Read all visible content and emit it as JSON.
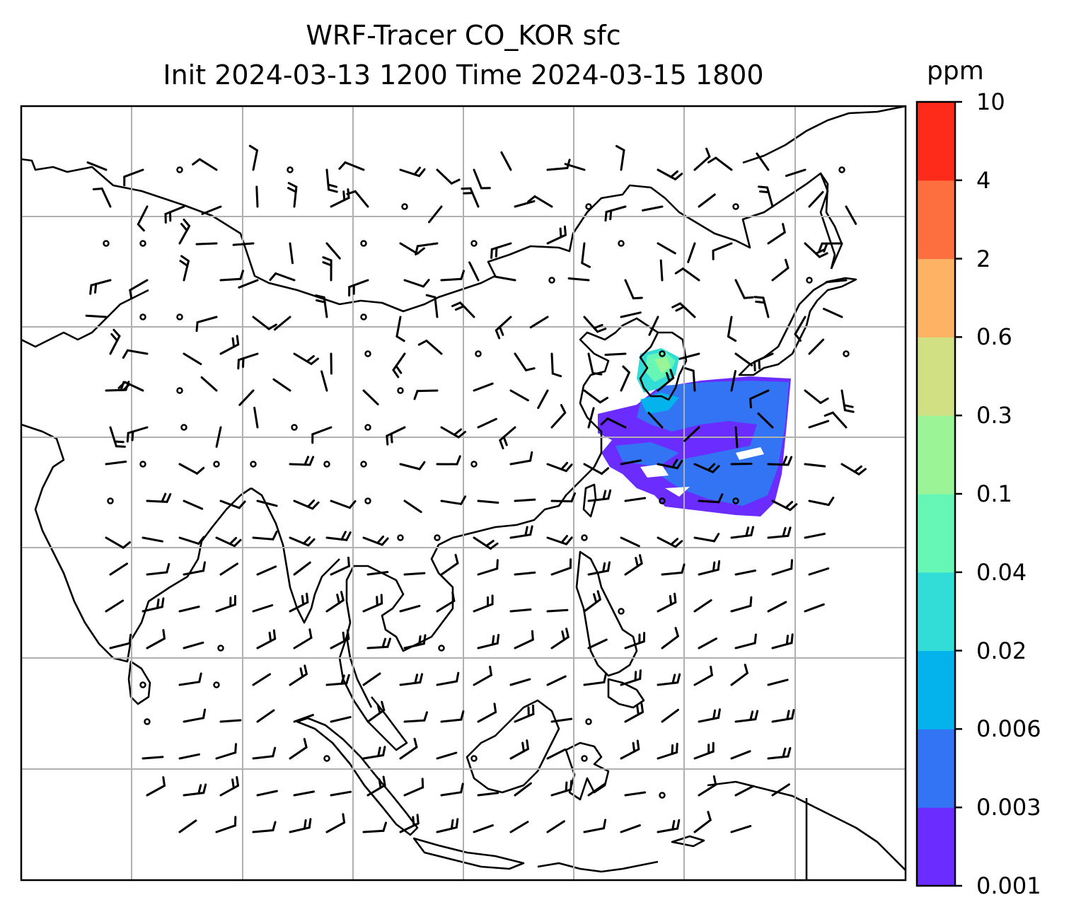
{
  "title": {
    "line1": "WRF-Tracer CO_KOR sfc",
    "line2": "Init 2024-03-13 1200 Time 2024-03-15 1800"
  },
  "colorbar": {
    "unit": "ppm",
    "levels": [
      {
        "label": "0.001",
        "color": "#6a2cff"
      },
      {
        "label": "0.003",
        "color": "#3374f4"
      },
      {
        "label": "0.006",
        "color": "#04b2ec"
      },
      {
        "label": "0.02",
        "color": "#32ddd7"
      },
      {
        "label": "0.04",
        "color": "#66f7b6"
      },
      {
        "label": "0.1",
        "color": "#9bf596"
      },
      {
        "label": "0.3",
        "color": "#d0e082"
      },
      {
        "label": "0.6",
        "color": "#feb264"
      },
      {
        "label": "2",
        "color": "#fe6f3f"
      },
      {
        "label": "4",
        "color": "#fe2a1a"
      },
      {
        "label": "10",
        "color": null
      }
    ]
  },
  "map": {
    "gridlines": true,
    "coastline_color": "#000000",
    "grid_color": "#b0b0b0",
    "tracer_source": "Korea",
    "wind_barbs": true,
    "calm_markers": true
  }
}
